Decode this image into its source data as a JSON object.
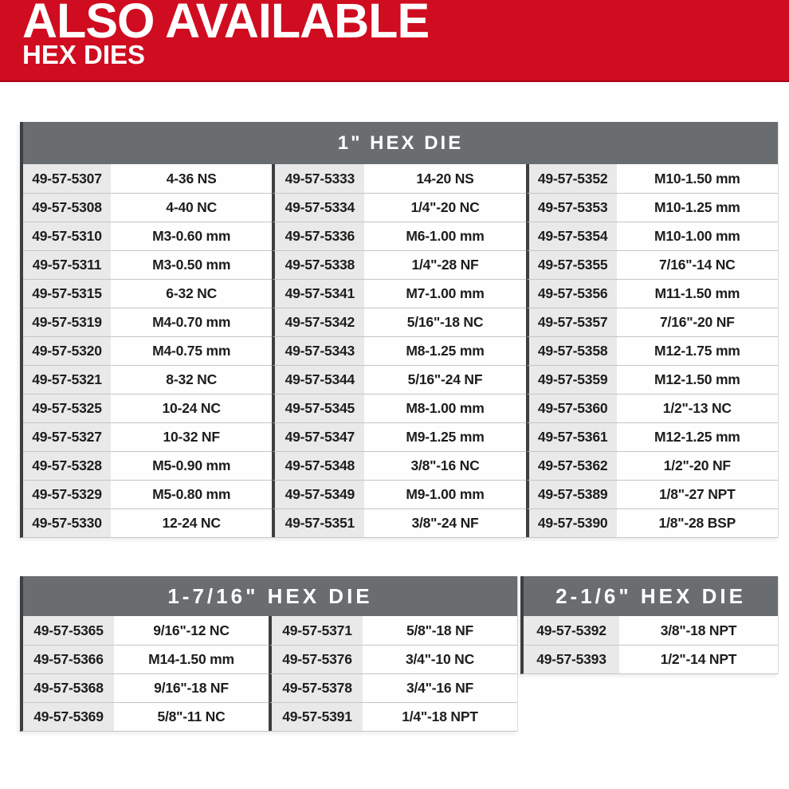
{
  "banner": {
    "title": "ALSO AVAILABLE",
    "subtitle": "HEX DIES"
  },
  "colors": {
    "accent_red": "#d00c20",
    "accent_red_dark": "#a80016",
    "table_header_bg": "#696d70",
    "part_cell_bg": "#e9e9e9",
    "divider_dark": "#3c3e40",
    "row_line": "#c3c5c7",
    "text": "#1d1d1b"
  },
  "tables": [
    {
      "title": "1\" HEX DIE",
      "groups": [
        {
          "rows": [
            {
              "part": "49-57-5307",
              "size": "4-36 NS"
            },
            {
              "part": "49-57-5308",
              "size": "4-40 NC"
            },
            {
              "part": "49-57-5310",
              "size": "M3-0.60 mm"
            },
            {
              "part": "49-57-5311",
              "size": "M3-0.50 mm"
            },
            {
              "part": "49-57-5315",
              "size": "6-32 NC"
            },
            {
              "part": "49-57-5319",
              "size": "M4-0.70 mm"
            },
            {
              "part": "49-57-5320",
              "size": "M4-0.75 mm"
            },
            {
              "part": "49-57-5321",
              "size": "8-32 NC"
            },
            {
              "part": "49-57-5325",
              "size": "10-24 NC"
            },
            {
              "part": "49-57-5327",
              "size": "10-32 NF"
            },
            {
              "part": "49-57-5328",
              "size": "M5-0.90 mm"
            },
            {
              "part": "49-57-5329",
              "size": "M5-0.80 mm"
            },
            {
              "part": "49-57-5330",
              "size": "12-24 NC"
            }
          ]
        },
        {
          "rows": [
            {
              "part": "49-57-5333",
              "size": "14-20 NS"
            },
            {
              "part": "49-57-5334",
              "size": "1/4\"-20 NC"
            },
            {
              "part": "49-57-5336",
              "size": "M6-1.00 mm"
            },
            {
              "part": "49-57-5338",
              "size": "1/4\"-28 NF"
            },
            {
              "part": "49-57-5341",
              "size": "M7-1.00 mm"
            },
            {
              "part": "49-57-5342",
              "size": "5/16\"-18 NC"
            },
            {
              "part": "49-57-5343",
              "size": "M8-1.25 mm"
            },
            {
              "part": "49-57-5344",
              "size": "5/16\"-24 NF"
            },
            {
              "part": "49-57-5345",
              "size": "M8-1.00 mm"
            },
            {
              "part": "49-57-5347",
              "size": "M9-1.25 mm"
            },
            {
              "part": "49-57-5348",
              "size": "3/8\"-16 NC"
            },
            {
              "part": "49-57-5349",
              "size": "M9-1.00 mm"
            },
            {
              "part": "49-57-5351",
              "size": "3/8\"-24 NF"
            }
          ]
        },
        {
          "rows": [
            {
              "part": "49-57-5352",
              "size": "M10-1.50 mm"
            },
            {
              "part": "49-57-5353",
              "size": "M10-1.25 mm"
            },
            {
              "part": "49-57-5354",
              "size": "M10-1.00 mm"
            },
            {
              "part": "49-57-5355",
              "size": "7/16\"-14 NC"
            },
            {
              "part": "49-57-5356",
              "size": "M11-1.50 mm"
            },
            {
              "part": "49-57-5357",
              "size": "7/16\"-20 NF"
            },
            {
              "part": "49-57-5358",
              "size": "M12-1.75 mm"
            },
            {
              "part": "49-57-5359",
              "size": "M12-1.50 mm"
            },
            {
              "part": "49-57-5360",
              "size": "1/2\"-13 NC"
            },
            {
              "part": "49-57-5361",
              "size": "M12-1.25 mm"
            },
            {
              "part": "49-57-5362",
              "size": "1/2\"-20 NF"
            },
            {
              "part": "49-57-5389",
              "size": "1/8\"-27 NPT"
            },
            {
              "part": "49-57-5390",
              "size": "1/8\"-28 BSP"
            }
          ]
        }
      ]
    },
    {
      "title": "1-7/16\" HEX DIE",
      "groups": [
        {
          "rows": [
            {
              "part": "49-57-5365",
              "size": "9/16\"-12 NC"
            },
            {
              "part": "49-57-5366",
              "size": "M14-1.50 mm"
            },
            {
              "part": "49-57-5368",
              "size": "9/16\"-18 NF"
            },
            {
              "part": "49-57-5369",
              "size": "5/8\"-11 NC"
            }
          ]
        },
        {
          "rows": [
            {
              "part": "49-57-5371",
              "size": "5/8\"-18 NF"
            },
            {
              "part": "49-57-5376",
              "size": "3/4\"-10 NC"
            },
            {
              "part": "49-57-5378",
              "size": "3/4\"-16 NF"
            },
            {
              "part": "49-57-5391",
              "size": "1/4\"-18 NPT"
            }
          ]
        }
      ]
    },
    {
      "title": "2-1/6\" HEX DIE",
      "groups": [
        {
          "rows": [
            {
              "part": "49-57-5392",
              "size": "3/8\"-18 NPT"
            },
            {
              "part": "49-57-5393",
              "size": "1/2\"-14 NPT"
            }
          ]
        }
      ]
    }
  ]
}
